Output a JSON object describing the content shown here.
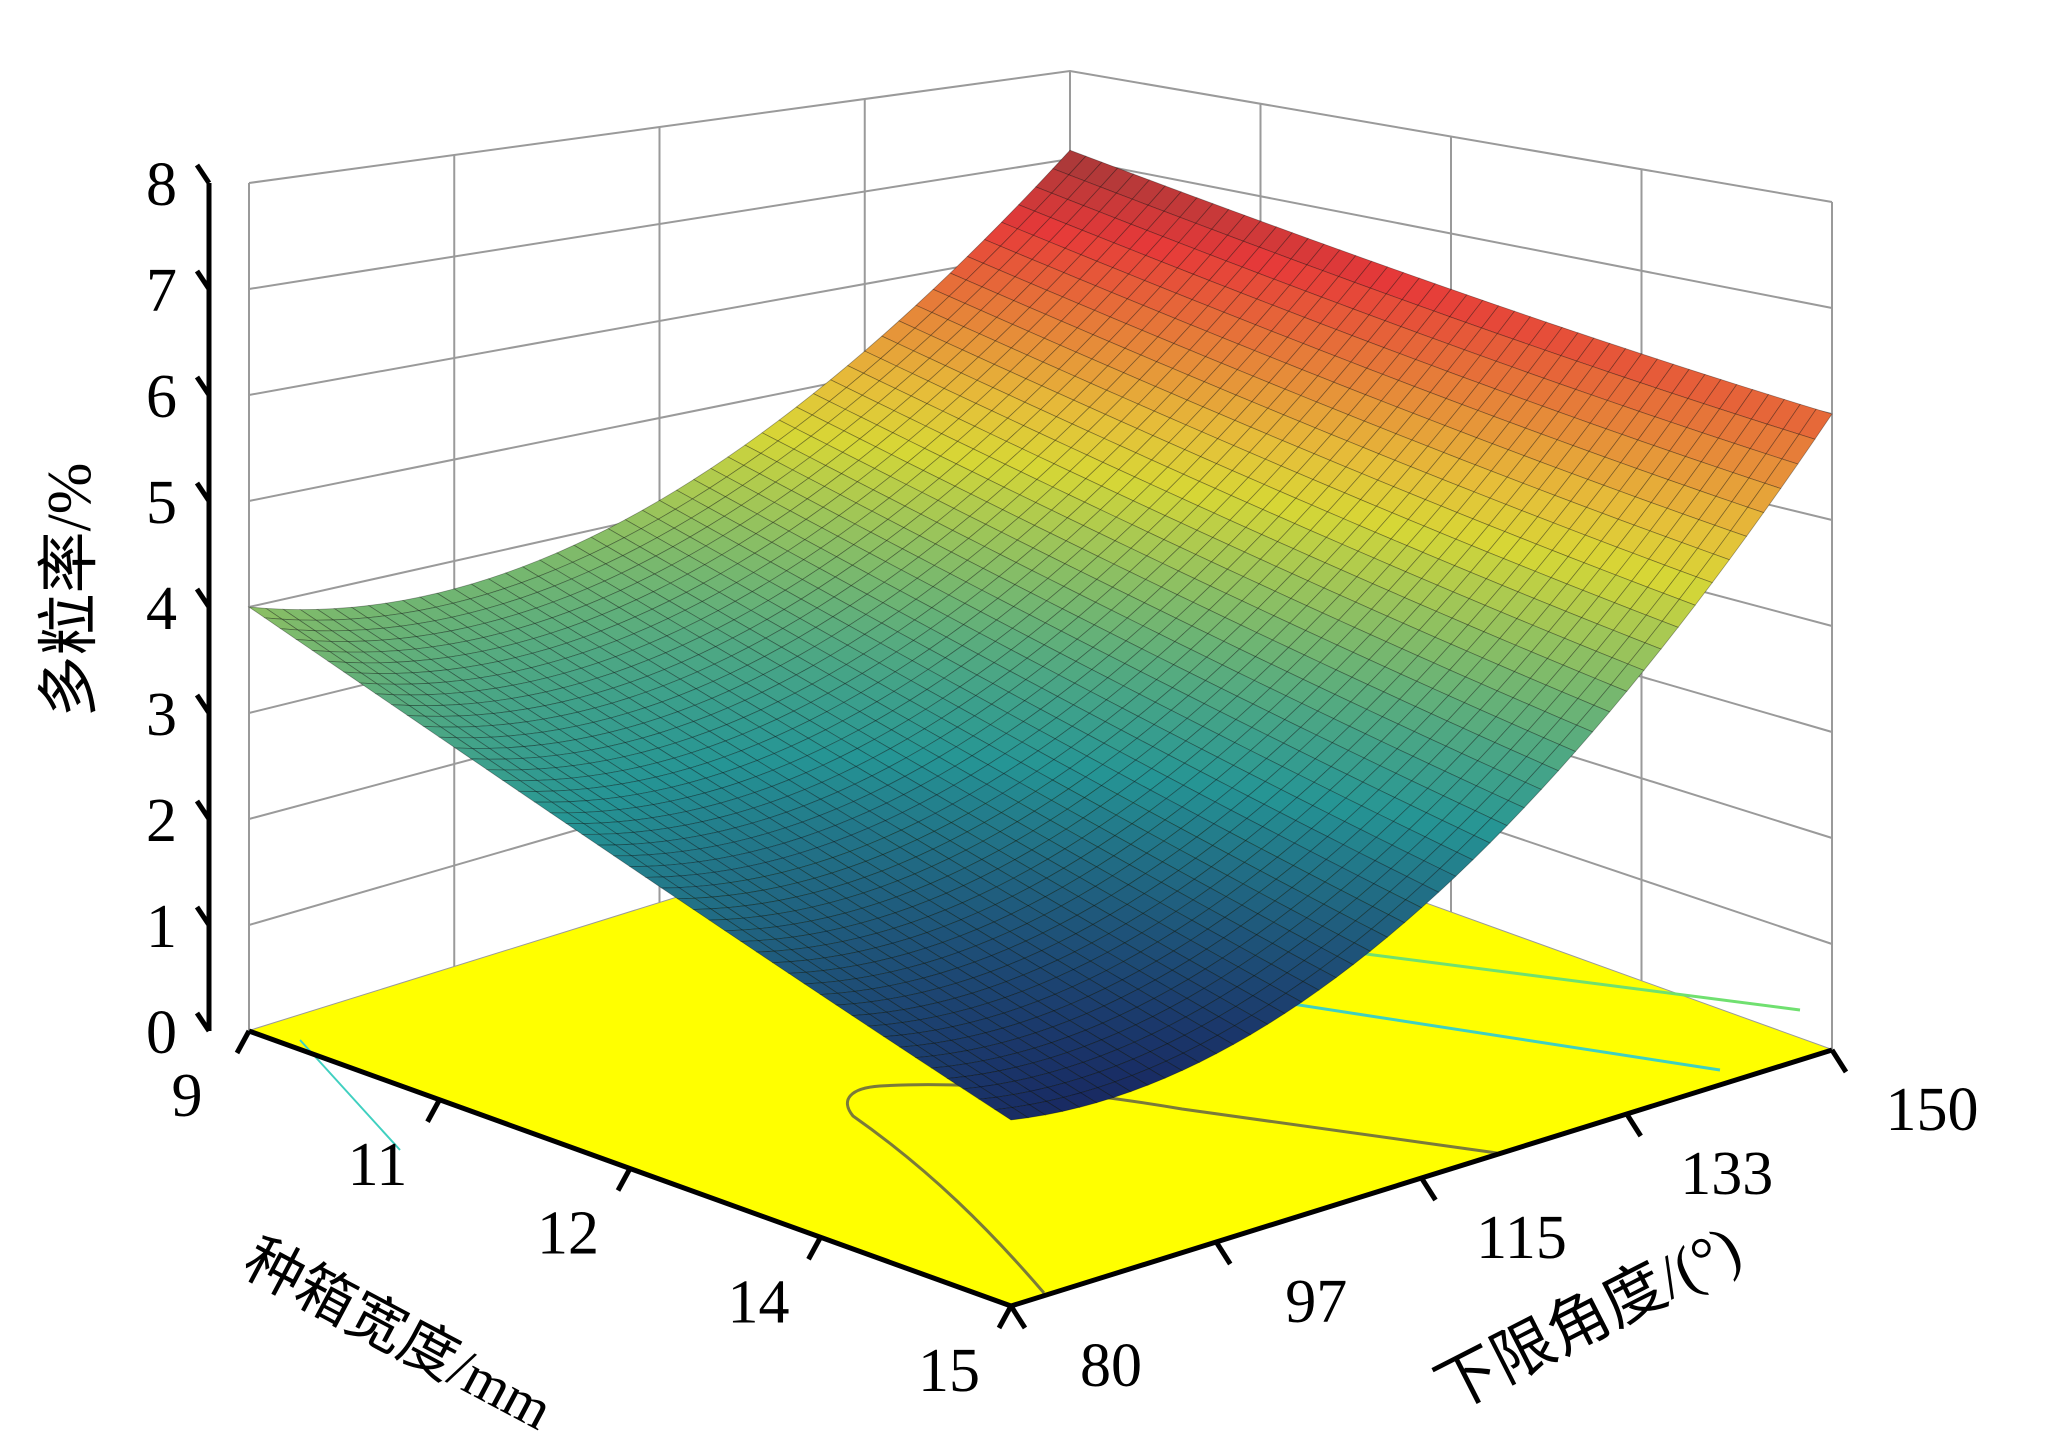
{
  "chart_data": {
    "type": "surface3d",
    "title": "",
    "xlabel": "种箱宽度/mm",
    "ylabel": "下限角度/(°)",
    "zlabel": "多粒率/%",
    "x_ticks": [
      "9",
      "11",
      "12",
      "14",
      "15"
    ],
    "y_ticks": [
      "80",
      "97",
      "115",
      "133",
      "150"
    ],
    "z_ticks": [
      "0",
      "1",
      "2",
      "3",
      "4",
      "5",
      "6",
      "7",
      "8"
    ],
    "xlim": [
      9,
      15
    ],
    "ylim": [
      80,
      150
    ],
    "zlim": [
      0,
      8
    ],
    "grid": true,
    "colormap": "jet",
    "floor_color": "#ffff00",
    "corner_values": [
      {
        "x": 9,
        "y": 80,
        "z": 4.0
      },
      {
        "x": 9,
        "y": 150,
        "z": 7.1
      },
      {
        "x": 15,
        "y": 150,
        "z": 6.0
      },
      {
        "x": 15,
        "y": 80,
        "z": 1.5
      }
    ],
    "min_value_approx": 1.4,
    "floor_contours": true
  }
}
